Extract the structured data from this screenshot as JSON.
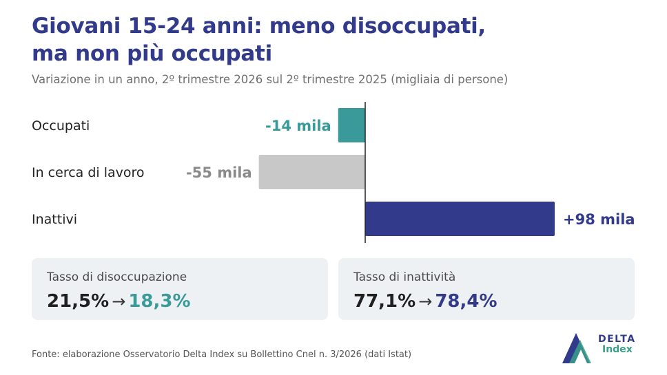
{
  "title_line1": "Giovani 15-24 anni: meno disoccupati,",
  "title_line2": "ma non più occupati",
  "subtitle": "Variazione in un anno, 2º trimestre 2026 sul 2º trimestre 2025 (migliaia di persone)",
  "chart_data": {
    "type": "bar",
    "orientation": "horizontal",
    "categories": [
      "Occupati",
      "In cerca di lavoro",
      "Inattivi"
    ],
    "values": [
      -14,
      -55,
      98
    ],
    "value_labels": [
      "-14 mila",
      "-55 mila",
      "+98 mila"
    ],
    "colors": [
      "#3a9a9a",
      "#c8c8c8",
      "#323a8c"
    ],
    "label_colors": [
      "#3a9a9a",
      "#8a8a8a",
      "#323a8c"
    ],
    "xlim": [
      -55,
      98
    ],
    "grid": false
  },
  "cards": {
    "left": {
      "label": "Tasso di disoccupazione",
      "from": "21,5%",
      "arrow": "→",
      "to": "18,3%",
      "to_color": "#3a9a9a"
    },
    "right": {
      "label": "Tasso di inattività",
      "from": "77,1%",
      "arrow": "→",
      "to": "78,4%",
      "to_color": "#323a8c"
    }
  },
  "source": "Fonte: elaborazione Osservatorio Delta Index su Bollettino Cnel n. 3/2026 (dati Istat)",
  "logo": {
    "line1": "DELTA",
    "line2": "Index",
    "icon": "delta-triangle-icon",
    "colors": [
      "#323a8c",
      "#3aa08a"
    ]
  }
}
